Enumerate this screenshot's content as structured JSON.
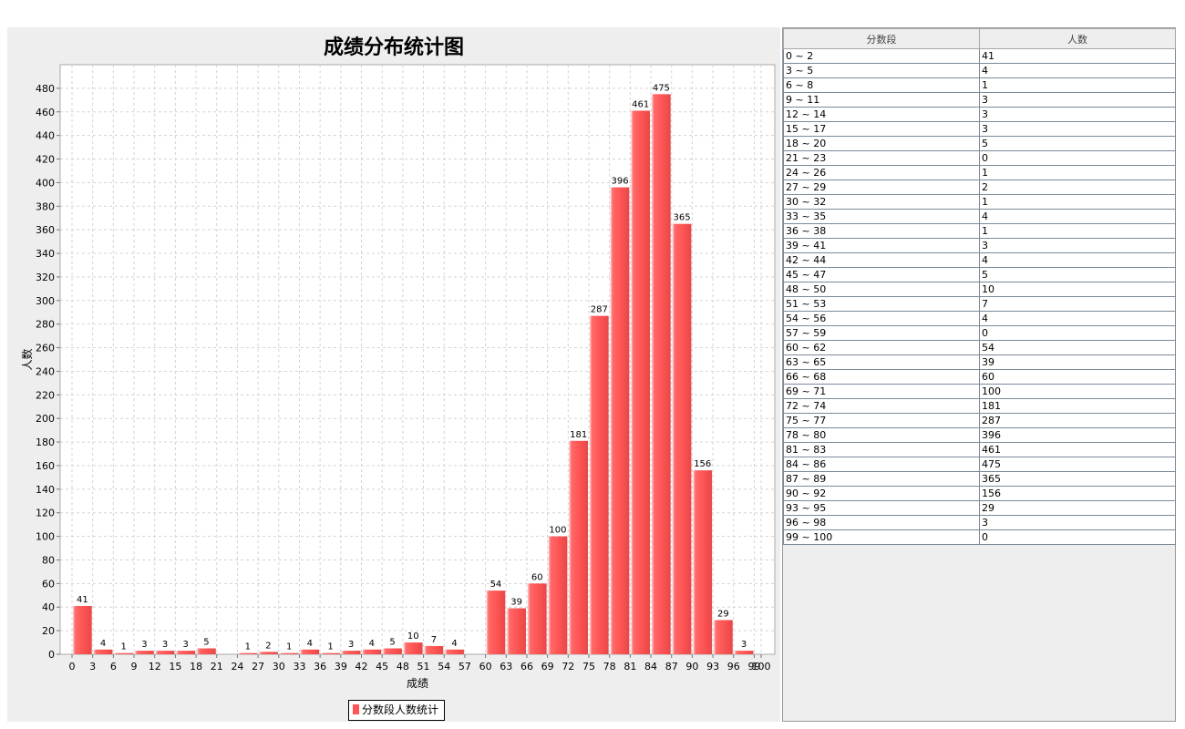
{
  "chart_data": {
    "type": "bar",
    "title": "成绩分布统计图",
    "xlabel": "成绩",
    "ylabel": "人数",
    "legend": "分数段人数统计",
    "legend_position": "bottom-center",
    "ylim": [
      0,
      500
    ],
    "yticks": [
      0,
      20,
      40,
      60,
      80,
      100,
      120,
      140,
      160,
      180,
      200,
      220,
      240,
      260,
      280,
      300,
      320,
      340,
      360,
      380,
      400,
      420,
      440,
      460,
      480
    ],
    "xticks": [
      0,
      3,
      6,
      9,
      12,
      15,
      18,
      21,
      24,
      27,
      30,
      33,
      36,
      39,
      42,
      45,
      48,
      51,
      54,
      57,
      60,
      63,
      66,
      69,
      72,
      75,
      78,
      81,
      84,
      87,
      90,
      93,
      96,
      99,
      100
    ],
    "xlim": [
      0,
      100
    ],
    "grid": true,
    "bar_color": "#ff5555",
    "bars": [
      {
        "x0": 0,
        "x1": 3,
        "v": 41
      },
      {
        "x0": 3,
        "x1": 6,
        "v": 4
      },
      {
        "x0": 6,
        "x1": 9,
        "v": 1
      },
      {
        "x0": 9,
        "x1": 12,
        "v": 3
      },
      {
        "x0": 12,
        "x1": 15,
        "v": 3
      },
      {
        "x0": 15,
        "x1": 18,
        "v": 3
      },
      {
        "x0": 18,
        "x1": 21,
        "v": 5
      },
      {
        "x0": 21,
        "x1": 24,
        "v": 0
      },
      {
        "x0": 24,
        "x1": 27,
        "v": 1
      },
      {
        "x0": 27,
        "x1": 30,
        "v": 2
      },
      {
        "x0": 30,
        "x1": 33,
        "v": 1
      },
      {
        "x0": 33,
        "x1": 36,
        "v": 4
      },
      {
        "x0": 36,
        "x1": 39,
        "v": 1
      },
      {
        "x0": 39,
        "x1": 42,
        "v": 3
      },
      {
        "x0": 42,
        "x1": 45,
        "v": 4
      },
      {
        "x0": 45,
        "x1": 48,
        "v": 5
      },
      {
        "x0": 48,
        "x1": 51,
        "v": 10
      },
      {
        "x0": 51,
        "x1": 54,
        "v": 7
      },
      {
        "x0": 54,
        "x1": 57,
        "v": 4
      },
      {
        "x0": 57,
        "x1": 60,
        "v": 0
      },
      {
        "x0": 60,
        "x1": 63,
        "v": 54
      },
      {
        "x0": 63,
        "x1": 66,
        "v": 39
      },
      {
        "x0": 66,
        "x1": 69,
        "v": 60
      },
      {
        "x0": 69,
        "x1": 72,
        "v": 100
      },
      {
        "x0": 72,
        "x1": 75,
        "v": 181
      },
      {
        "x0": 75,
        "x1": 78,
        "v": 287
      },
      {
        "x0": 78,
        "x1": 81,
        "v": 396
      },
      {
        "x0": 81,
        "x1": 84,
        "v": 461
      },
      {
        "x0": 84,
        "x1": 87,
        "v": 475
      },
      {
        "x0": 87,
        "x1": 90,
        "v": 365
      },
      {
        "x0": 90,
        "x1": 93,
        "v": 156
      },
      {
        "x0": 93,
        "x1": 96,
        "v": 29
      },
      {
        "x0": 96,
        "x1": 99,
        "v": 3
      },
      {
        "x0": 99,
        "x1": 100,
        "v": 0
      }
    ]
  },
  "table": {
    "headers": [
      "分数段",
      "人数"
    ],
    "rows": [
      [
        "0 ~ 2",
        "41"
      ],
      [
        "3 ~ 5",
        "4"
      ],
      [
        "6 ~ 8",
        "1"
      ],
      [
        "9 ~ 11",
        "3"
      ],
      [
        "12 ~ 14",
        "3"
      ],
      [
        "15 ~ 17",
        "3"
      ],
      [
        "18 ~ 20",
        "5"
      ],
      [
        "21 ~ 23",
        "0"
      ],
      [
        "24 ~ 26",
        "1"
      ],
      [
        "27 ~ 29",
        "2"
      ],
      [
        "30 ~ 32",
        "1"
      ],
      [
        "33 ~ 35",
        "4"
      ],
      [
        "36 ~ 38",
        "1"
      ],
      [
        "39 ~ 41",
        "3"
      ],
      [
        "42 ~ 44",
        "4"
      ],
      [
        "45 ~ 47",
        "5"
      ],
      [
        "48 ~ 50",
        "10"
      ],
      [
        "51 ~ 53",
        "7"
      ],
      [
        "54 ~ 56",
        "4"
      ],
      [
        "57 ~ 59",
        "0"
      ],
      [
        "60 ~ 62",
        "54"
      ],
      [
        "63 ~ 65",
        "39"
      ],
      [
        "66 ~ 68",
        "60"
      ],
      [
        "69 ~ 71",
        "100"
      ],
      [
        "72 ~ 74",
        "181"
      ],
      [
        "75 ~ 77",
        "287"
      ],
      [
        "78 ~ 80",
        "396"
      ],
      [
        "81 ~ 83",
        "461"
      ],
      [
        "84 ~ 86",
        "475"
      ],
      [
        "87 ~ 89",
        "365"
      ],
      [
        "90 ~ 92",
        "156"
      ],
      [
        "93 ~ 95",
        "29"
      ],
      [
        "96 ~ 98",
        "3"
      ],
      [
        "99 ~ 100",
        "0"
      ]
    ]
  }
}
